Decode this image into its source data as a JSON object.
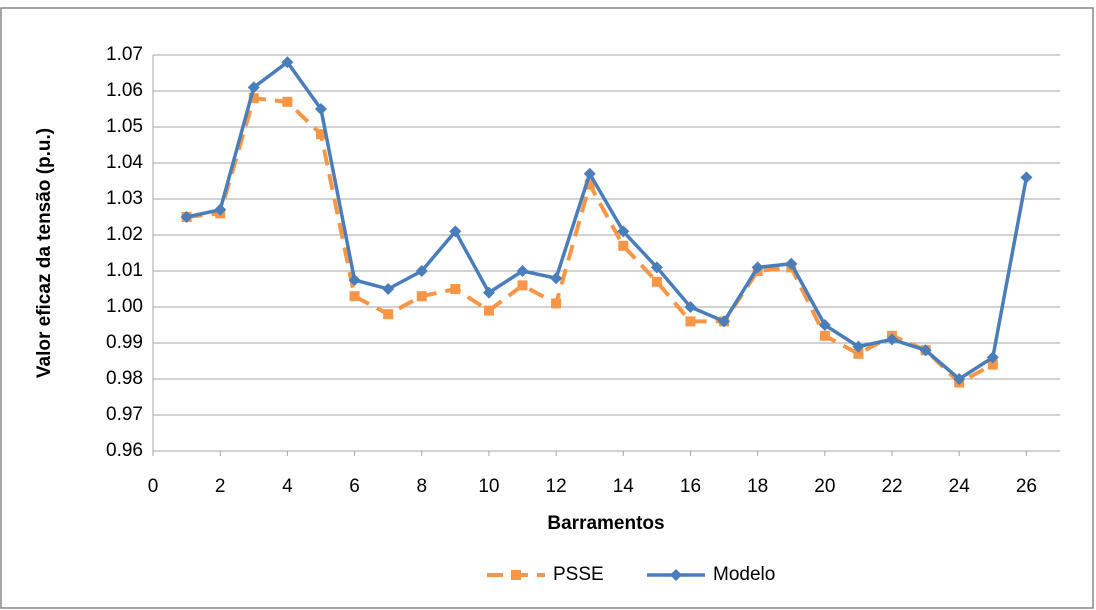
{
  "chart_data": {
    "type": "line",
    "xlabel": "Barramentos",
    "ylabel": "Valor eficaz da tensão (p.u.)",
    "x": [
      1,
      2,
      3,
      4,
      5,
      6,
      7,
      8,
      9,
      10,
      11,
      12,
      13,
      14,
      15,
      16,
      17,
      18,
      19,
      20,
      21,
      22,
      23,
      24,
      25,
      26
    ],
    "series": [
      {
        "name": "PSSE",
        "color": "#f79646",
        "dash": true,
        "marker": "square",
        "values": [
          1.025,
          1.026,
          1.058,
          1.057,
          1.048,
          1.003,
          0.998,
          1.003,
          1.005,
          0.999,
          1.006,
          1.001,
          1.034,
          1.017,
          1.007,
          0.996,
          0.996,
          1.01,
          1.011,
          0.992,
          0.987,
          0.992,
          0.988,
          0.979,
          0.984,
          null
        ]
      },
      {
        "name": "Modelo",
        "color": "#4a7ebb",
        "dash": false,
        "marker": "diamond",
        "values": [
          1.025,
          1.027,
          1.061,
          1.068,
          1.055,
          1.0075,
          1.005,
          1.01,
          1.021,
          1.004,
          1.01,
          1.008,
          1.037,
          1.021,
          1.011,
          1.0,
          0.996,
          1.011,
          1.012,
          0.995,
          0.989,
          0.991,
          0.988,
          0.98,
          0.986,
          1.036
        ]
      }
    ],
    "xlim": [
      0,
      27
    ],
    "xticks": [
      0,
      2,
      4,
      6,
      8,
      10,
      12,
      14,
      16,
      18,
      20,
      22,
      24,
      26
    ],
    "ylim": [
      0.96,
      1.07
    ],
    "yticks": [
      0.96,
      0.97,
      0.98,
      0.99,
      {
        "value": 1,
        "label": "1.00"
      },
      1.01,
      1.02,
      1.03,
      1.04,
      1.05,
      1.06,
      1.07
    ],
    "grid": true,
    "legend": "bottom"
  }
}
